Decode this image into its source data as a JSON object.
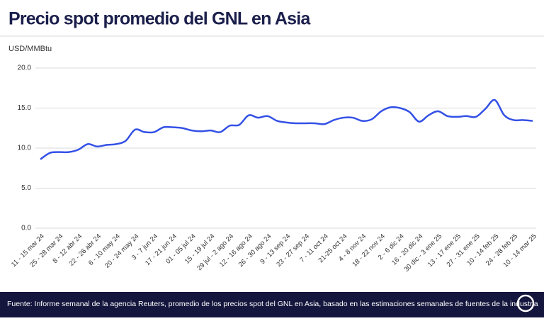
{
  "chart_data": {
    "type": "line",
    "title": "Precio spot promedio del GNL en Asia",
    "y_label": "USD/MMBtu",
    "source": "Fuente: Informe semanal de la agencia Reuters, promedio de los precios spot del GNL en Asia, basado en las estimaciones semanales de fuentes de la industria",
    "categories": [
      "11 - 15 mar 24",
      null,
      "25 - 28 mar 24",
      null,
      "8 - 12 abr 24",
      null,
      "22 - 26 abr 24",
      null,
      "6 - 10 may 24",
      null,
      "20 - 24 may 24",
      null,
      "3 - 7 jun 24",
      null,
      "17 - 21 jun 24",
      null,
      "01 - 05 jul 24",
      null,
      "15 - 19 jul 24",
      null,
      "29 jul - 2 ago 24",
      null,
      "12 - 16 ago 24",
      null,
      "26 - 30 ago 24",
      null,
      "9 - 13 sep 24",
      null,
      "23 - 27 sep 24",
      null,
      "7 - 11 oct 24",
      null,
      "21-25 oct 24",
      null,
      "4 - 8 nov 24",
      null,
      "18 - 22 nov 24",
      null,
      "2 - 6 dic 24",
      null,
      "16 - 20 dic 24",
      null,
      "30 dic - 3 ene 25",
      null,
      "13 - 17 ene 25",
      null,
      "27 - 31 ene 25",
      null,
      "10 - 14 feb 25",
      null,
      "24 - 28 feb 25",
      null,
      "10 - 14 mar 25"
    ],
    "series": [
      {
        "name": "Precio spot",
        "color": "#3451e6",
        "values": [
          8.6,
          9.4,
          9.5,
          9.5,
          9.8,
          10.5,
          10.2,
          10.4,
          10.5,
          10.9,
          12.3,
          12.0,
          12.0,
          12.6,
          12.6,
          12.5,
          12.2,
          12.1,
          12.2,
          12.0,
          12.8,
          12.9,
          14.1,
          13.8,
          14.0,
          13.4,
          13.2,
          13.1,
          13.1,
          13.1,
          13.0,
          13.5,
          13.8,
          13.8,
          13.4,
          13.6,
          14.6,
          15.1,
          15.0,
          14.5,
          13.3,
          14.1,
          14.6,
          14.0,
          13.9,
          14.0,
          13.9,
          14.9,
          16.0,
          14.1,
          13.5,
          13.5,
          13.4
        ]
      }
    ],
    "ylim": [
      0,
      20
    ],
    "yticks": [
      {
        "value": 0,
        "label": "0.0"
      },
      {
        "value": 5,
        "label": "5.0"
      },
      {
        "value": 10,
        "label": "10.0"
      },
      {
        "value": 15,
        "label": "15.0"
      },
      {
        "value": 20,
        "label": "20.0"
      }
    ],
    "grid": true
  }
}
